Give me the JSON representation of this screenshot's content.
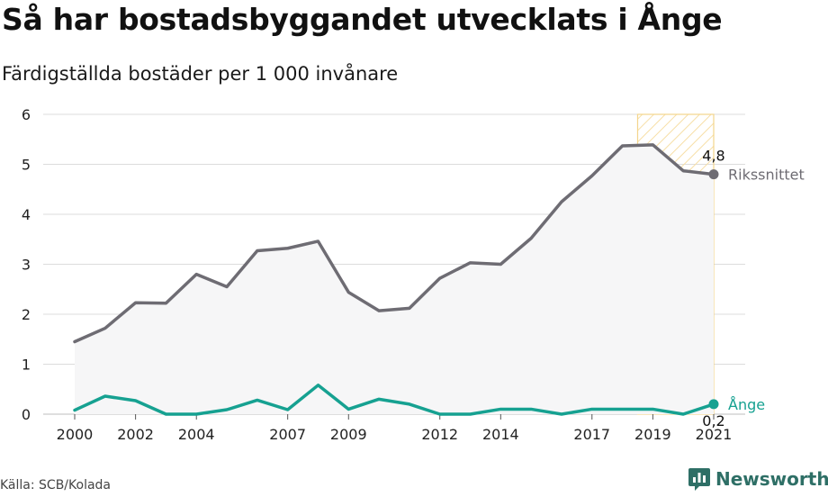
{
  "title": "Så har bostadsbyggandet utvecklats i Ånge",
  "subtitle": "Färdigställda bostäder per 1 000 invånare",
  "source": "Källa: SCB/Kolada",
  "brand": {
    "name": "Newsworthy",
    "icon": "newsworthy-logo-icon",
    "color": "#2e6f66"
  },
  "colors": {
    "national": "#6e6c73",
    "municipality": "#16a191",
    "area_fill": "#f6f6f7",
    "highlight_stroke": "#f4d58d",
    "highlight_hatch": "#f7dfa6",
    "grid": "#dcdcdc"
  },
  "chart_data": {
    "type": "line",
    "x": [
      2000,
      2001,
      2002,
      2003,
      2004,
      2005,
      2006,
      2007,
      2008,
      2009,
      2010,
      2011,
      2012,
      2013,
      2014,
      2015,
      2016,
      2017,
      2018,
      2019,
      2020,
      2021
    ],
    "x_tick_labels": [
      "2000",
      "2002",
      "2004",
      "2007",
      "2009",
      "2012",
      "2014",
      "2017",
      "2019",
      "2021"
    ],
    "y_ticks": [
      "0",
      "1",
      "2",
      "3",
      "4",
      "5",
      "6"
    ],
    "ylim": [
      0,
      6
    ],
    "highlight_range": [
      2018.5,
      2021
    ],
    "grid": true,
    "series": [
      {
        "name": "Rikssnittet",
        "values": [
          1.45,
          1.72,
          2.23,
          2.22,
          2.8,
          2.55,
          3.27,
          3.32,
          3.46,
          2.44,
          2.07,
          2.12,
          2.72,
          3.03,
          3.0,
          3.52,
          4.25,
          4.77,
          5.37,
          5.39,
          4.87,
          4.8
        ],
        "end_label": "4,8"
      },
      {
        "name": "Ånge",
        "values": [
          0.08,
          0.36,
          0.27,
          0.0,
          0.0,
          0.09,
          0.28,
          0.09,
          0.58,
          0.1,
          0.3,
          0.2,
          0.0,
          0.0,
          0.1,
          0.1,
          0.0,
          0.1,
          0.1,
          0.1,
          0.0,
          0.2
        ],
        "end_label": "0,2"
      }
    ]
  }
}
